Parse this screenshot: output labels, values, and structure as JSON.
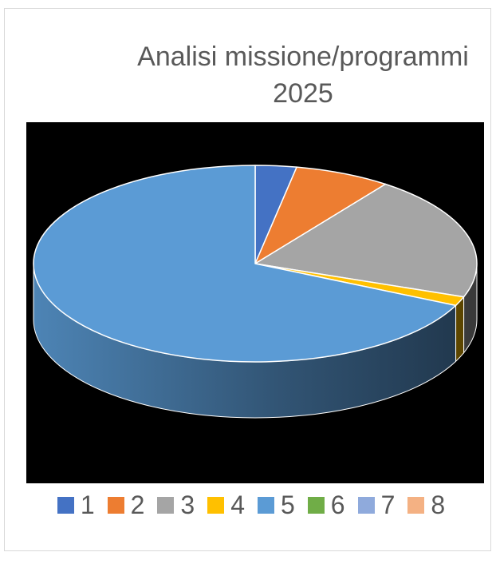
{
  "chart_data": {
    "type": "pie3d",
    "title": "Analisi missione/programmi 2025",
    "categories": [
      "1",
      "2",
      "3",
      "4",
      "5",
      "6",
      "7",
      "8"
    ],
    "values": [
      3,
      7,
      20.5,
      1.5,
      68,
      0,
      0,
      0
    ],
    "colors": [
      "#4472c4",
      "#ed7d31",
      "#a5a5a5",
      "#ffc000",
      "#5b9bd5",
      "#70ad47",
      "#8faadc",
      "#f4b183"
    ],
    "legend": "bottom"
  }
}
